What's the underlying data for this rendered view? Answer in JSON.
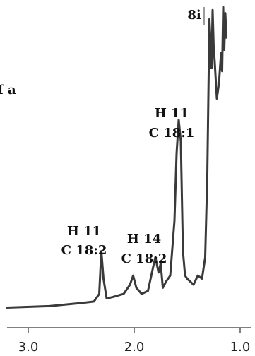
{
  "chart_data": {
    "type": "line",
    "title": "",
    "xlabel": "",
    "ylabel": "",
    "x_reversed": true,
    "xlim": [
      3.2,
      0.9
    ],
    "ylim": [
      0,
      1
    ],
    "xticks": [
      {
        "value": 3.0,
        "label": "3.0"
      },
      {
        "value": 2.0,
        "label": "2.0"
      },
      {
        "value": 1.0,
        "label": "1.0"
      }
    ],
    "grid": false,
    "legend": "none",
    "series": [
      {
        "x": [
          3.2,
          2.8,
          2.5,
          2.38,
          2.33,
          2.31,
          2.29,
          2.26,
          2.2,
          2.1,
          2.04,
          2.01,
          1.98,
          1.93,
          1.87,
          1.82,
          1.8,
          1.77,
          1.75,
          1.73,
          1.7,
          1.66,
          1.62,
          1.6,
          1.58,
          1.56,
          1.54,
          1.52,
          1.5,
          1.47,
          1.44,
          1.4,
          1.36,
          1.33,
          1.31,
          1.29,
          1.27,
          1.26,
          1.25,
          1.24,
          1.22,
          1.2,
          1.18,
          1.17,
          1.16,
          1.15,
          1.14,
          1.13
        ],
        "y": [
          0.015,
          0.02,
          0.03,
          0.035,
          0.06,
          0.2,
          0.11,
          0.045,
          0.05,
          0.06,
          0.09,
          0.12,
          0.08,
          0.06,
          0.07,
          0.15,
          0.18,
          0.13,
          0.16,
          0.08,
          0.1,
          0.12,
          0.3,
          0.52,
          0.63,
          0.56,
          0.2,
          0.12,
          0.11,
          0.1,
          0.09,
          0.12,
          0.11,
          0.18,
          0.45,
          0.96,
          0.8,
          0.99,
          0.87,
          0.82,
          0.7,
          0.75,
          0.85,
          0.79,
          1.0,
          0.86,
          0.98,
          0.9
        ]
      }
    ],
    "annotations": [
      {
        "lines": [
          "H 11",
          "C 18:2"
        ],
        "x": 2.31
      },
      {
        "lines": [
          "H 14",
          "C 18:2"
        ],
        "x": 2.04
      },
      {
        "lines": [
          "H 11",
          "C 18:1"
        ],
        "x": 1.62
      },
      {
        "lines": [
          "8i"
        ],
        "x": 1.27
      },
      {
        "lines": [
          "f a"
        ],
        "x": 3.16
      }
    ]
  }
}
